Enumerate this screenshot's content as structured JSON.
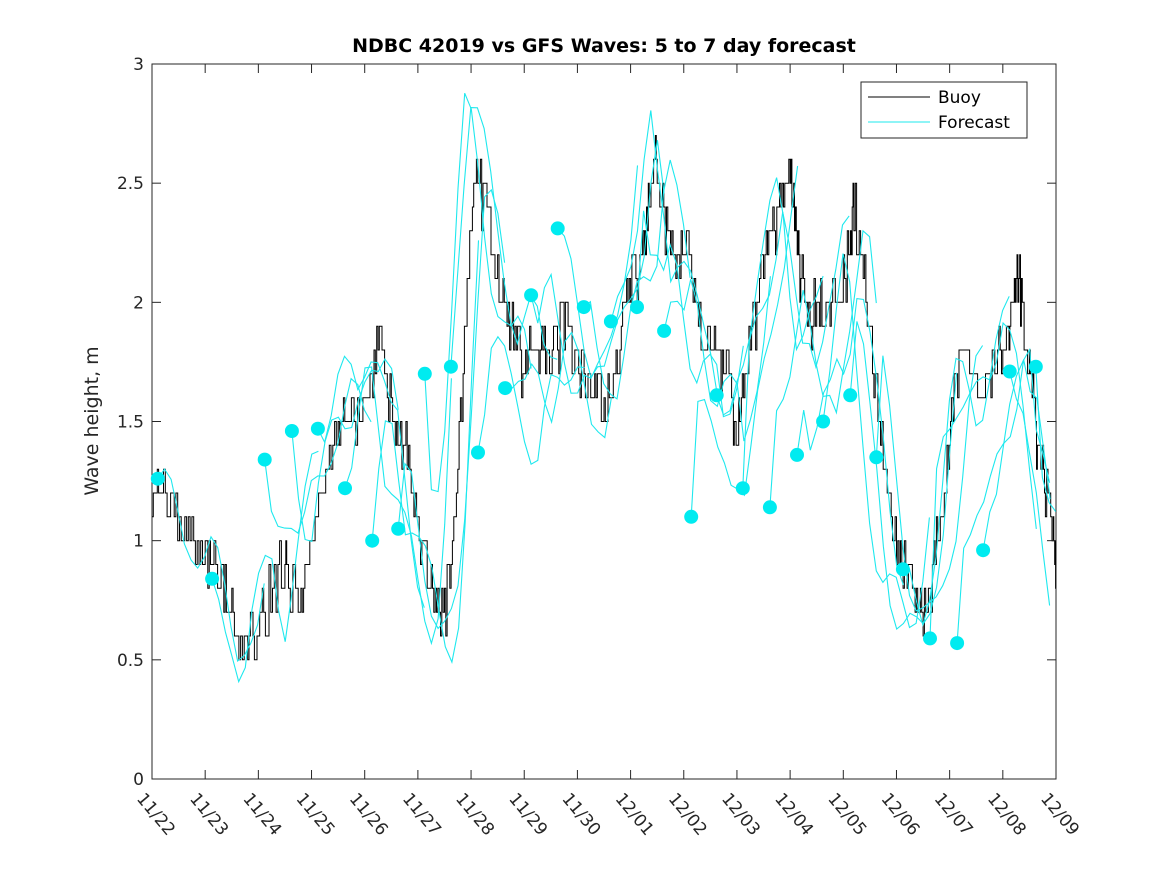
{
  "chart_data": {
    "type": "line",
    "title": "NDBC 42019 vs GFS Waves: 5 to 7 day forecast",
    "xlabel": "",
    "ylabel": "Wave height, m",
    "ylim": [
      0,
      3
    ],
    "yticks": [
      0,
      0.5,
      1,
      1.5,
      2,
      2.5,
      3
    ],
    "ytick_labels": [
      "0",
      "0.5",
      "1",
      "1.5",
      "2",
      "2.5",
      "3"
    ],
    "xlim_days": [
      0,
      17
    ],
    "xtick_labels": [
      "11/22",
      "11/23",
      "11/24",
      "11/25",
      "11/26",
      "11/27",
      "11/28",
      "11/29",
      "11/30",
      "12/01",
      "12/02",
      "12/03",
      "12/04",
      "12/05",
      "12/06",
      "12/07",
      "12/08",
      "12/09"
    ],
    "grid": false,
    "legend": {
      "position": "top-right",
      "entries": [
        {
          "label": "Buoy",
          "color": "#000000"
        },
        {
          "label": "Forecast",
          "color": "#00e5ee"
        }
      ]
    },
    "colors": {
      "buoy": "#000000",
      "forecast": "#1ee8ee",
      "dots": "#00ebf0",
      "axes": "#262626"
    },
    "buoy": {
      "name": "Buoy",
      "points": [
        [
          0.0,
          1.1
        ],
        [
          0.15,
          1.2
        ],
        [
          0.35,
          1.1
        ],
        [
          0.55,
          1.0
        ],
        [
          0.75,
          1.0
        ],
        [
          0.95,
          0.9
        ],
        [
          1.1,
          0.9
        ],
        [
          1.3,
          0.8
        ],
        [
          1.45,
          0.7
        ],
        [
          1.6,
          0.6
        ],
        [
          1.8,
          0.6
        ],
        [
          1.95,
          0.5
        ],
        [
          2.1,
          0.7
        ],
        [
          2.3,
          0.8
        ],
        [
          2.5,
          0.9
        ],
        [
          2.6,
          0.8
        ],
        [
          2.75,
          0.7
        ],
        [
          2.9,
          0.9
        ],
        [
          3.1,
          1.1
        ],
        [
          3.3,
          1.3
        ],
        [
          3.5,
          1.4
        ],
        [
          3.65,
          1.5
        ],
        [
          3.8,
          1.5
        ],
        [
          4.0,
          1.5
        ],
        [
          4.15,
          1.7
        ],
        [
          4.3,
          1.8
        ],
        [
          4.45,
          1.6
        ],
        [
          4.6,
          1.4
        ],
        [
          4.75,
          1.4
        ],
        [
          4.9,
          1.2
        ],
        [
          5.05,
          1.0
        ],
        [
          5.2,
          0.8
        ],
        [
          5.35,
          0.7
        ],
        [
          5.5,
          0.7
        ],
        [
          5.65,
          0.9
        ],
        [
          5.8,
          1.5
        ],
        [
          5.95,
          2.1
        ],
        [
          6.1,
          2.5
        ],
        [
          6.25,
          2.4
        ],
        [
          6.4,
          2.2
        ],
        [
          6.55,
          2.0
        ],
        [
          6.7,
          1.9
        ],
        [
          6.85,
          1.8
        ],
        [
          7.0,
          1.7
        ],
        [
          7.15,
          1.8
        ],
        [
          7.3,
          1.8
        ],
        [
          7.45,
          1.7
        ],
        [
          7.6,
          1.8
        ],
        [
          7.75,
          1.9
        ],
        [
          7.9,
          1.8
        ],
        [
          8.05,
          1.7
        ],
        [
          8.2,
          1.6
        ],
        [
          8.35,
          1.6
        ],
        [
          8.5,
          1.5
        ],
        [
          8.65,
          1.6
        ],
        [
          8.8,
          1.8
        ],
        [
          8.95,
          2.0
        ],
        [
          9.1,
          2.1
        ],
        [
          9.25,
          2.2
        ],
        [
          9.35,
          2.4
        ],
        [
          9.45,
          2.6
        ],
        [
          9.55,
          2.4
        ],
        [
          9.7,
          2.3
        ],
        [
          9.85,
          2.1
        ],
        [
          10.0,
          2.2
        ],
        [
          10.15,
          2.1
        ],
        [
          10.3,
          1.9
        ],
        [
          10.45,
          1.8
        ],
        [
          10.6,
          1.8
        ],
        [
          10.75,
          1.7
        ],
        [
          10.9,
          1.6
        ],
        [
          11.0,
          1.4
        ],
        [
          11.1,
          1.6
        ],
        [
          11.25,
          1.8
        ],
        [
          11.4,
          2.0
        ],
        [
          11.55,
          2.2
        ],
        [
          11.7,
          2.3
        ],
        [
          11.85,
          2.4
        ],
        [
          12.0,
          2.5
        ],
        [
          12.1,
          2.3
        ],
        [
          12.2,
          2.1
        ],
        [
          12.35,
          1.9
        ],
        [
          12.5,
          2.0
        ],
        [
          12.65,
          1.9
        ],
        [
          12.8,
          2.0
        ],
        [
          12.95,
          2.0
        ],
        [
          13.1,
          2.2
        ],
        [
          13.2,
          2.4
        ],
        [
          13.35,
          2.2
        ],
        [
          13.5,
          1.8
        ],
        [
          13.65,
          1.5
        ],
        [
          13.8,
          1.2
        ],
        [
          13.95,
          1.0
        ],
        [
          14.1,
          0.9
        ],
        [
          14.25,
          0.8
        ],
        [
          14.4,
          0.7
        ],
        [
          14.55,
          0.7
        ],
        [
          14.7,
          0.9
        ],
        [
          14.85,
          1.1
        ],
        [
          15.0,
          1.4
        ],
        [
          15.1,
          1.6
        ],
        [
          15.25,
          1.7
        ],
        [
          15.4,
          1.7
        ],
        [
          15.55,
          1.6
        ],
        [
          15.7,
          1.6
        ],
        [
          15.85,
          1.7
        ],
        [
          16.0,
          1.8
        ],
        [
          16.1,
          1.9
        ],
        [
          16.2,
          2.0
        ],
        [
          16.3,
          2.1
        ],
        [
          16.4,
          1.8
        ],
        [
          16.5,
          1.7
        ],
        [
          16.6,
          1.5
        ],
        [
          16.7,
          1.3
        ],
        [
          16.8,
          1.2
        ],
        [
          16.95,
          1.0
        ],
        [
          17.0,
          0.9
        ]
      ]
    },
    "forecast_dots": [
      [
        0.11,
        1.26
      ],
      [
        1.13,
        0.84
      ],
      [
        2.12,
        1.34
      ],
      [
        2.63,
        1.46
      ],
      [
        3.12,
        1.47
      ],
      [
        3.63,
        1.22
      ],
      [
        4.14,
        1.0
      ],
      [
        4.63,
        1.05
      ],
      [
        5.13,
        1.7
      ],
      [
        5.62,
        1.73
      ],
      [
        6.13,
        1.37
      ],
      [
        6.64,
        1.64
      ],
      [
        7.13,
        2.03
      ],
      [
        7.63,
        2.31
      ],
      [
        8.12,
        1.98
      ],
      [
        8.63,
        1.92
      ],
      [
        9.12,
        1.98
      ],
      [
        9.63,
        1.88
      ],
      [
        10.14,
        1.1
      ],
      [
        10.62,
        1.61
      ],
      [
        11.11,
        1.22
      ],
      [
        11.62,
        1.14
      ],
      [
        12.13,
        1.36
      ],
      [
        12.62,
        1.5
      ],
      [
        13.13,
        1.61
      ],
      [
        13.62,
        1.35
      ],
      [
        14.12,
        0.88
      ],
      [
        14.63,
        0.59
      ],
      [
        15.14,
        0.57
      ],
      [
        15.63,
        0.96
      ],
      [
        16.13,
        1.71
      ],
      [
        16.62,
        1.73
      ]
    ]
  }
}
